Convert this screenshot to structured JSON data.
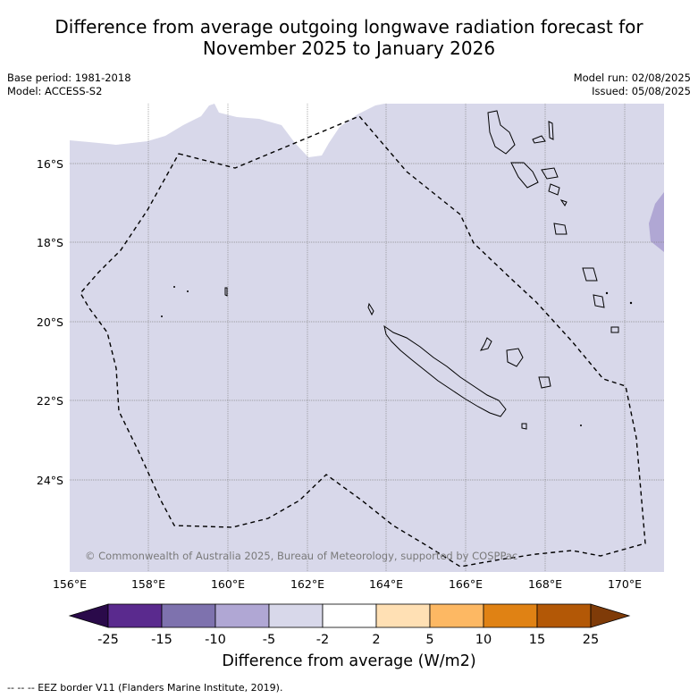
{
  "title_line1": "Difference from average outgoing longwave radiation forecast for",
  "title_line2": "November 2025 to January 2026",
  "meta_left": [
    "Base period: 1981-2018",
    "Model: ACCESS-S2"
  ],
  "meta_right": [
    "Model run: 02/08/2025",
    "Issued: 05/08/2025"
  ],
  "copyright": "© Commonwealth of Australia 2025, Bureau of Meteorology, supported by COSPPac",
  "lon_ticks": [
    "156°E",
    "158°E",
    "160°E",
    "162°E",
    "164°E",
    "166°E",
    "168°E",
    "170°E"
  ],
  "lat_ticks": [
    "16°S",
    "18°S",
    "20°S",
    "22°S",
    "24°S"
  ],
  "colorbar": {
    "labels": [
      "-25",
      "-15",
      "-10",
      "-5",
      "-2",
      "2",
      "5",
      "10",
      "15",
      "25"
    ],
    "colors": [
      "#2a0a4a",
      "#5a2a8e",
      "#7e72ae",
      "#b0a7d4",
      "#d8d8ea",
      "#ffffff",
      "#ffe0b4",
      "#fdb863",
      "#e08214",
      "#b35806",
      "#7f3b08"
    ],
    "title": "Difference from average (W/m2)"
  },
  "map": {
    "background_color": "#d8d8ea",
    "anomaly_color": "#b0a7d4"
  },
  "footer": "-- -- -- EEZ border V11 (Flanders Marine Institute, 2019)."
}
